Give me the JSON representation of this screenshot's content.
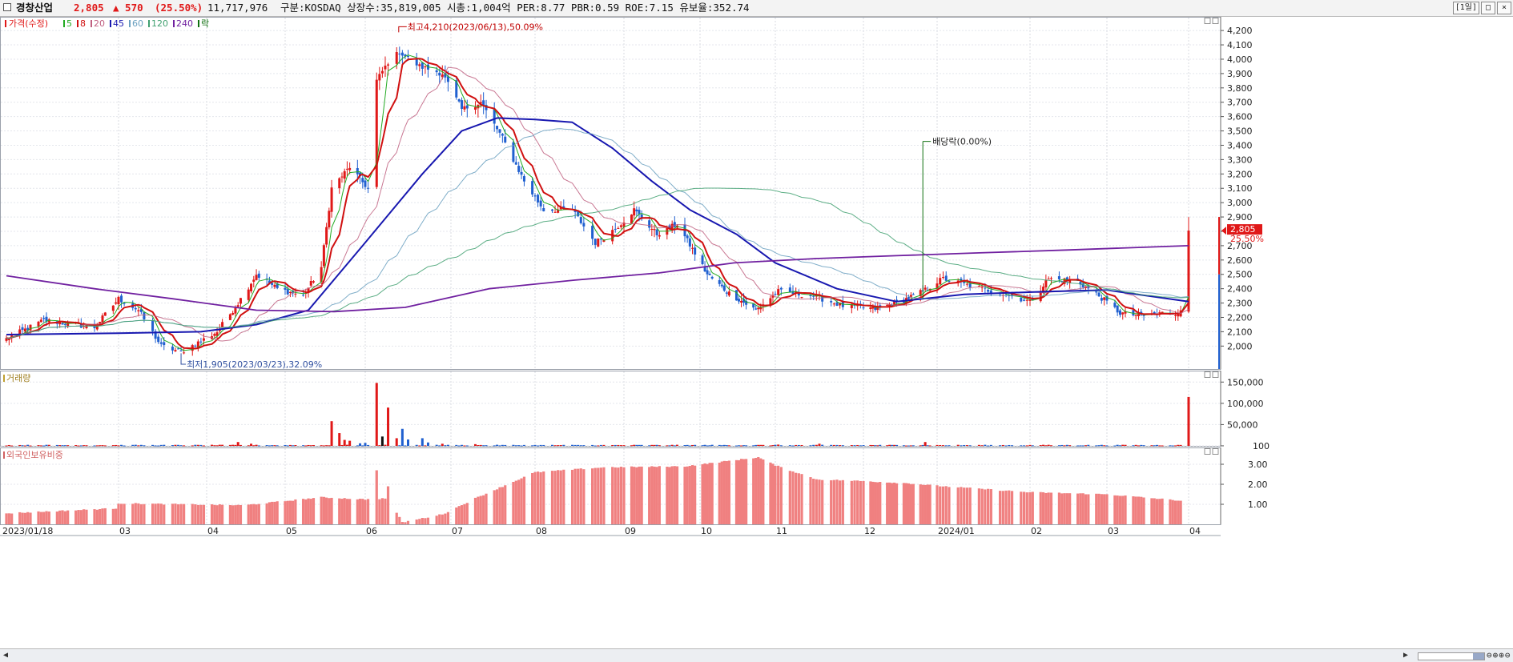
{
  "header": {
    "stock_name": "경창산업",
    "price": "2,805",
    "change": "▲ 570",
    "change_pct": "(25.50%)",
    "volume": "11,717,976",
    "info": "구분:KOSDAQ 상장수:35,819,005 시총:1,004억 PER:8.77 PBR:0.59 ROE:7.15 유보율:352.74",
    "period_button": "[1일]"
  },
  "legend": {
    "price_label": "가격(수정)",
    "ma_items": [
      {
        "label": "5",
        "color": "#22aa22"
      },
      {
        "label": "8",
        "color": "#d01010"
      },
      {
        "label": "20",
        "color": "#c06080"
      },
      {
        "label": "45",
        "color": "#1818b0"
      },
      {
        "label": "60",
        "color": "#6aa0c0"
      },
      {
        "label": "120",
        "color": "#40a070"
      },
      {
        "label": "240",
        "color": "#7020a0"
      }
    ],
    "exdiv_label": "락"
  },
  "colors": {
    "up": "#e01818",
    "down": "#2060d0",
    "foreign_bar": "#f08080",
    "current_price_box": "#e01818"
  },
  "chart_data": [
    {
      "type": "candlestick",
      "title": "가격(수정)",
      "x_labels": [
        "2023/01/18",
        "03",
        "04",
        "05",
        "06",
        "07",
        "08",
        "09",
        "10",
        "11",
        "12",
        "2024/01",
        "02",
        "03",
        "04"
      ],
      "y_ticks": [
        2000,
        2100,
        2200,
        2300,
        2400,
        2500,
        2600,
        2700,
        2800,
        2900,
        3000,
        3100,
        3200,
        3300,
        3400,
        3500,
        3600,
        3700,
        3800,
        3900,
        4000,
        4100,
        4200
      ],
      "y_tick_labels": [
        "2,000",
        "2,100",
        "2,200",
        "2,300",
        "2,400",
        "2,500",
        "2,600",
        "2,700",
        "2,800",
        "2,900",
        "3,000",
        "3,100",
        "3,200",
        "3,300",
        "3,400",
        "3,500",
        "3,600",
        "3,700",
        "3,800",
        "3,900",
        "4,000",
        "4,100",
        "4,200"
      ],
      "ylim": [
        1840,
        4290
      ],
      "price_path": [
        {
          "d": "2023-01-18",
          "p": 2050
        },
        {
          "d": "2023-02-01",
          "p": 2180
        },
        {
          "d": "2023-02-20",
          "p": 2130
        },
        {
          "d": "2023-03-01",
          "p": 2330
        },
        {
          "d": "2023-03-08",
          "p": 2250
        },
        {
          "d": "2023-03-16",
          "p": 2000
        },
        {
          "d": "2023-03-23",
          "p": 1960
        },
        {
          "d": "2023-04-05",
          "p": 2100
        },
        {
          "d": "2023-04-13",
          "p": 2300
        },
        {
          "d": "2023-04-20",
          "p": 2500
        },
        {
          "d": "2023-04-28",
          "p": 2400
        },
        {
          "d": "2023-05-08",
          "p": 2350
        },
        {
          "d": "2023-05-15",
          "p": 2550
        },
        {
          "d": "2023-05-19",
          "p": 3100
        },
        {
          "d": "2023-05-26",
          "p": 3250
        },
        {
          "d": "2023-06-02",
          "p": 3100
        },
        {
          "d": "2023-06-05",
          "p": 3850
        },
        {
          "d": "2023-06-09",
          "p": 3980
        },
        {
          "d": "2023-06-13",
          "p": 4050
        },
        {
          "d": "2023-06-20",
          "p": 3950
        },
        {
          "d": "2023-06-28",
          "p": 3900
        },
        {
          "d": "2023-07-05",
          "p": 3650
        },
        {
          "d": "2023-07-12",
          "p": 3700
        },
        {
          "d": "2023-07-20",
          "p": 3450
        },
        {
          "d": "2023-07-28",
          "p": 3150
        },
        {
          "d": "2023-08-04",
          "p": 2950
        },
        {
          "d": "2023-08-14",
          "p": 2950
        },
        {
          "d": "2023-08-22",
          "p": 2720
        },
        {
          "d": "2023-08-29",
          "p": 2820
        },
        {
          "d": "2023-09-05",
          "p": 2950
        },
        {
          "d": "2023-09-14",
          "p": 2780
        },
        {
          "d": "2023-09-22",
          "p": 2850
        },
        {
          "d": "2023-10-04",
          "p": 2500
        },
        {
          "d": "2023-10-12",
          "p": 2380
        },
        {
          "d": "2023-10-24",
          "p": 2250
        },
        {
          "d": "2023-11-02",
          "p": 2380
        },
        {
          "d": "2023-11-14",
          "p": 2350
        },
        {
          "d": "2023-11-24",
          "p": 2280
        },
        {
          "d": "2023-12-06",
          "p": 2260
        },
        {
          "d": "2023-12-15",
          "p": 2300
        },
        {
          "d": "2023-12-26",
          "p": 2380
        },
        {
          "d": "2024-01-03",
          "p": 2470
        },
        {
          "d": "2024-01-12",
          "p": 2420
        },
        {
          "d": "2024-01-24",
          "p": 2360
        },
        {
          "d": "2024-02-01",
          "p": 2310
        },
        {
          "d": "2024-02-08",
          "p": 2470
        },
        {
          "d": "2024-02-19",
          "p": 2450
        },
        {
          "d": "2024-02-27",
          "p": 2350
        },
        {
          "d": "2024-03-06",
          "p": 2230
        },
        {
          "d": "2024-03-14",
          "p": 2210
        },
        {
          "d": "2024-03-22",
          "p": 2230
        },
        {
          "d": "2024-03-29",
          "p": 2235
        }
      ],
      "last_candle": {
        "date": "2024-04-01",
        "open": 2240,
        "high": 2900,
        "low": 2230,
        "close": 2805
      },
      "moving_averages": [
        {
          "name": "5",
          "color": "#22aa22",
          "points": []
        },
        {
          "name": "8",
          "color": "#d01010",
          "points": []
        },
        {
          "name": "20",
          "color": "#c06080",
          "points": []
        },
        {
          "name": "45",
          "color": "#1818b0",
          "points": [
            {
              "d": "2023-01-18",
              "v": 2080
            },
            {
              "d": "2023-03-01",
              "v": 2090
            },
            {
              "d": "2023-03-30",
              "v": 2100
            },
            {
              "d": "2023-04-20",
              "v": 2150
            },
            {
              "d": "2023-05-10",
              "v": 2250
            },
            {
              "d": "2023-05-31",
              "v": 2700
            },
            {
              "d": "2023-06-21",
              "v": 3200
            },
            {
              "d": "2023-07-05",
              "v": 3500
            },
            {
              "d": "2023-07-18",
              "v": 3590
            },
            {
              "d": "2023-08-01",
              "v": 3580
            },
            {
              "d": "2023-08-14",
              "v": 3560
            },
            {
              "d": "2023-08-28",
              "v": 3380
            },
            {
              "d": "2023-09-12",
              "v": 3150
            },
            {
              "d": "2023-09-27",
              "v": 2950
            },
            {
              "d": "2023-10-16",
              "v": 2780
            },
            {
              "d": "2023-11-01",
              "v": 2580
            },
            {
              "d": "2023-11-22",
              "v": 2400
            },
            {
              "d": "2023-12-15",
              "v": 2310
            },
            {
              "d": "2024-01-10",
              "v": 2360
            },
            {
              "d": "2024-02-07",
              "v": 2380
            },
            {
              "d": "2024-03-01",
              "v": 2390
            },
            {
              "d": "2024-04-01",
              "v": 2310
            }
          ]
        },
        {
          "name": "60",
          "color": "#6aa0c0",
          "points": []
        },
        {
          "name": "120",
          "color": "#40a070",
          "points": []
        },
        {
          "name": "240",
          "color": "#7020a0",
          "points": [
            {
              "d": "2023-01-18",
              "v": 2490
            },
            {
              "d": "2023-02-20",
              "v": 2400
            },
            {
              "d": "2023-03-20",
              "v": 2330
            },
            {
              "d": "2023-04-20",
              "v": 2250
            },
            {
              "d": "2023-05-20",
              "v": 2240
            },
            {
              "d": "2023-06-15",
              "v": 2270
            },
            {
              "d": "2023-07-15",
              "v": 2400
            },
            {
              "d": "2023-08-15",
              "v": 2460
            },
            {
              "d": "2023-09-15",
              "v": 2510
            },
            {
              "d": "2023-10-15",
              "v": 2580
            },
            {
              "d": "2023-11-15",
              "v": 2610
            },
            {
              "d": "2023-12-15",
              "v": 2630
            },
            {
              "d": "2024-01-15",
              "v": 2650
            },
            {
              "d": "2024-02-15",
              "v": 2670
            },
            {
              "d": "2024-04-01",
              "v": 2700
            }
          ]
        }
      ],
      "annotations": [
        {
          "text": "최고4,210(2023/06/13),50.09%",
          "d": "2023-06-13",
          "v": 4210,
          "color": "#c00000"
        },
        {
          "text": "최저1,905(2023/03/23),32.09%",
          "d": "2023-03-23",
          "v": 1905,
          "color": "#3050a0"
        },
        {
          "text": "배당락(0.00%)",
          "d": "2023-12-26",
          "v": 3360,
          "color": "#107010"
        }
      ],
      "current_price_label": "2,805",
      "current_change_label": "25.50%"
    },
    {
      "type": "bar",
      "title": "거래량",
      "y_ticks": [
        100,
        50000,
        100000,
        150000
      ],
      "y_tick_labels": [
        "100",
        "50,000",
        "100,000",
        "150,000"
      ],
      "ylim": [
        0,
        175000
      ],
      "spikes": [
        {
          "d": "2023-04-13",
          "v": 9000
        },
        {
          "d": "2023-04-18",
          "v": 5000
        },
        {
          "d": "2023-05-19",
          "v": 58000
        },
        {
          "d": "2023-05-22",
          "v": 30000
        },
        {
          "d": "2023-05-24",
          "v": 14000
        },
        {
          "d": "2023-05-26",
          "v": 12000
        },
        {
          "d": "2023-05-30",
          "v": 6000
        },
        {
          "d": "2023-06-01",
          "v": 7000
        },
        {
          "d": "2023-06-05",
          "v": 148000
        },
        {
          "d": "2023-06-07",
          "v": 22000
        },
        {
          "d": "2023-06-09",
          "v": 90000
        },
        {
          "d": "2023-06-12",
          "v": 18000
        },
        {
          "d": "2023-06-14",
          "v": 40000
        },
        {
          "d": "2023-06-16",
          "v": 15000
        },
        {
          "d": "2023-06-21",
          "v": 18000
        },
        {
          "d": "2023-06-23",
          "v": 8000
        },
        {
          "d": "2023-06-28",
          "v": 5000
        },
        {
          "d": "2023-07-10",
          "v": 4000
        },
        {
          "d": "2023-11-02",
          "v": 3000
        },
        {
          "d": "2023-11-16",
          "v": 5000
        },
        {
          "d": "2023-12-27",
          "v": 9000
        },
        {
          "d": "2024-04-01",
          "v": 115000
        }
      ]
    },
    {
      "type": "bar",
      "title": "외국인보유비중",
      "y_ticks": [
        1.0,
        2.0,
        3.0
      ],
      "y_tick_labels": [
        "1.00",
        "2.00",
        "3.00"
      ],
      "ylim": [
        0,
        3.8
      ],
      "profile": [
        {
          "d": "2023-01-18",
          "v": 0.55
        },
        {
          "d": "2023-02-28",
          "v": 0.8
        },
        {
          "d": "2023-03-01",
          "v": 1.05
        },
        {
          "d": "2023-04-15",
          "v": 0.95
        },
        {
          "d": "2023-05-15",
          "v": 1.35
        },
        {
          "d": "2023-06-01",
          "v": 1.25
        },
        {
          "d": "2023-06-09",
          "v": 1.3
        },
        {
          "d": "2023-06-14",
          "v": 0.1
        },
        {
          "d": "2023-06-28",
          "v": 0.5
        },
        {
          "d": "2023-07-10",
          "v": 1.3
        },
        {
          "d": "2023-08-01",
          "v": 2.6
        },
        {
          "d": "2023-08-25",
          "v": 2.85
        },
        {
          "d": "2023-09-25",
          "v": 2.9
        },
        {
          "d": "2023-10-25",
          "v": 3.35
        },
        {
          "d": "2023-11-01",
          "v": 2.95
        },
        {
          "d": "2023-11-15",
          "v": 2.25
        },
        {
          "d": "2023-12-20",
          "v": 2.05
        },
        {
          "d": "2024-02-01",
          "v": 1.6
        },
        {
          "d": "2024-03-01",
          "v": 1.5
        },
        {
          "d": "2024-04-01",
          "v": 1.15
        }
      ],
      "extra_points": [
        {
          "d": "2023-06-05",
          "v": 2.7
        },
        {
          "d": "2023-06-09",
          "v": 1.9
        }
      ]
    }
  ]
}
